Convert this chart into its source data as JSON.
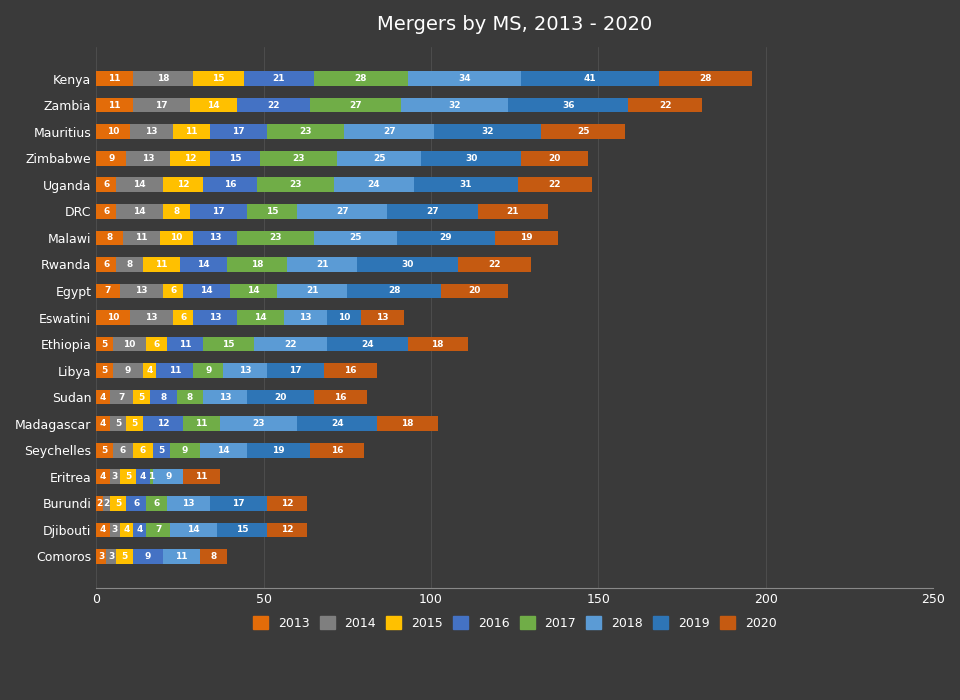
{
  "title": "Mergers by MS, 2013 - 2020",
  "background_color": "#3a3a3a",
  "text_color": "#ffffff",
  "categories": [
    "Kenya",
    "Zambia",
    "Mauritius",
    "Zimbabwe",
    "Uganda",
    "DRC",
    "Malawi",
    "Rwanda",
    "Egypt",
    "Eswatini",
    "Ethiopia",
    "Libya",
    "Sudan",
    "Madagascar",
    "Seychelles",
    "Eritrea",
    "Burundi",
    "Djibouti",
    "Comoros"
  ],
  "years": [
    "2013",
    "2014",
    "2015",
    "2016",
    "2017",
    "2018",
    "2019",
    "2020"
  ],
  "colors": {
    "2013": "#e36c09",
    "2014": "#7f7f7f",
    "2015": "#ffc000",
    "2016": "#4472c4",
    "2017": "#70ad47",
    "2018": "#5b9bd5",
    "2019": "#2e75b6",
    "2020": "#c55a11"
  },
  "data": {
    "Comoros": [
      3,
      3,
      5,
      9,
      0,
      11,
      0,
      8
    ],
    "Djibouti": [
      4,
      3,
      4,
      4,
      7,
      14,
      15,
      12
    ],
    "Burundi": [
      2,
      2,
      5,
      6,
      6,
      13,
      17,
      12
    ],
    "Eritrea": [
      4,
      3,
      5,
      4,
      1,
      9,
      0,
      11
    ],
    "Seychelles": [
      5,
      6,
      6,
      5,
      9,
      14,
      19,
      16
    ],
    "Madagascar": [
      4,
      5,
      5,
      12,
      11,
      23,
      24,
      18
    ],
    "Sudan": [
      4,
      7,
      5,
      8,
      8,
      13,
      20,
      16
    ],
    "Libya": [
      5,
      9,
      4,
      11,
      9,
      13,
      17,
      16
    ],
    "Ethiopia": [
      5,
      10,
      6,
      11,
      15,
      22,
      24,
      18
    ],
    "Eswatini": [
      10,
      13,
      6,
      13,
      14,
      13,
      10,
      13
    ],
    "Egypt": [
      7,
      13,
      6,
      14,
      14,
      21,
      28,
      20
    ],
    "Rwanda": [
      6,
      8,
      11,
      14,
      18,
      21,
      30,
      22
    ],
    "Malawi": [
      8,
      11,
      10,
      13,
      23,
      25,
      29,
      19
    ],
    "DRC": [
      6,
      14,
      8,
      17,
      15,
      27,
      27,
      21
    ],
    "Uganda": [
      6,
      14,
      12,
      16,
      23,
      24,
      31,
      22
    ],
    "Zimbabwe": [
      9,
      13,
      12,
      15,
      23,
      25,
      30,
      20
    ],
    "Mauritius": [
      10,
      13,
      11,
      17,
      23,
      27,
      32,
      25
    ],
    "Zambia": [
      11,
      17,
      14,
      22,
      27,
      32,
      36,
      22
    ],
    "Kenya": [
      11,
      18,
      15,
      21,
      28,
      34,
      41,
      28
    ]
  },
  "xlim": [
    0,
    250
  ],
  "xticks": [
    0,
    50,
    100,
    150,
    200,
    250
  ]
}
